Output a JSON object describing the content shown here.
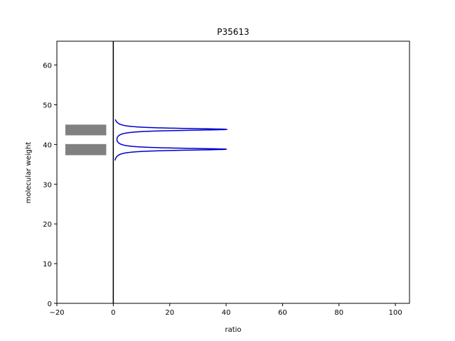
{
  "chart_data": {
    "type": "line",
    "title": "P35613",
    "xlabel": "ratio",
    "ylabel": "molecular weight",
    "xlim": [
      -20,
      105
    ],
    "ylim": [
      0,
      66
    ],
    "x_ticks": [
      -20,
      0,
      20,
      40,
      60,
      80,
      100
    ],
    "y_ticks": [
      0,
      10,
      20,
      30,
      40,
      50,
      60
    ],
    "grid": false,
    "vertical_line_x": 0,
    "bands": [
      {
        "x_range": [
          -17,
          -2.5
        ],
        "y_range": [
          42.3,
          45.0
        ],
        "color": "#808080"
      },
      {
        "x_range": [
          -17,
          -2.5
        ],
        "y_range": [
          37.3,
          40.1
        ],
        "color": "#808080"
      }
    ],
    "series": [
      {
        "color": "#0000cc",
        "peaks": [
          {
            "center": 43.8,
            "height": 40.0,
            "width": 0.32
          },
          {
            "center": 38.8,
            "height": 40.0,
            "width": 0.32
          }
        ],
        "y_range": [
          36.0,
          46.3
        ]
      }
    ]
  }
}
